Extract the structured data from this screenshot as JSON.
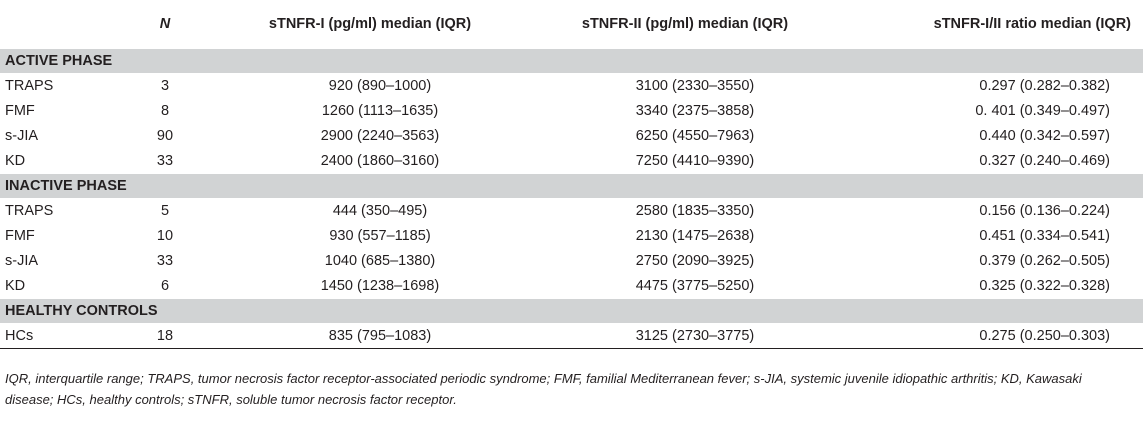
{
  "table": {
    "headers": [
      "",
      "N",
      "sTNFR-I (pg/ml) median (IQR)",
      "sTNFR-II (pg/ml) median (IQR)",
      "sTNFR-I/II ratio median (IQR)"
    ],
    "sections": [
      {
        "title": "ACTIVE PHASE",
        "rows": [
          [
            "TRAPS",
            "3",
            "920 (890–1000)",
            "3100 (2330–3550)",
            "0.297 (0.282–0.382)"
          ],
          [
            "FMF",
            "8",
            "1260 (1113–1635)",
            "3340 (2375–3858)",
            "0. 401 (0.349–0.497)"
          ],
          [
            "s-JIA",
            "90",
            "2900 (2240–3563)",
            "6250 (4550–7963)",
            "0.440 (0.342–0.597)"
          ],
          [
            "KD",
            "33",
            "2400 (1860–3160)",
            "7250 (4410–9390)",
            "0.327 (0.240–0.469)"
          ]
        ]
      },
      {
        "title": "INACTIVE PHASE",
        "rows": [
          [
            "TRAPS",
            "5",
            "444 (350–495)",
            "2580 (1835–3350)",
            "0.156 (0.136–0.224)"
          ],
          [
            "FMF",
            "10",
            "930 (557–1185)",
            "2130 (1475–2638)",
            "0.451 (0.334–0.541)"
          ],
          [
            "s-JIA",
            "33",
            "1040 (685–1380)",
            "2750 (2090–3925)",
            "0.379 (0.262–0.505)"
          ],
          [
            "KD",
            "6",
            "1450 (1238–1698)",
            "4475 (3775–5250)",
            "0.325 (0.322–0.328)"
          ]
        ]
      },
      {
        "title": "HEALTHY CONTROLS",
        "rows": [
          [
            "HCs",
            "18",
            "835 (795–1083)",
            "3125 (2730–3775)",
            "0.275 (0.250–0.303)"
          ]
        ]
      }
    ]
  },
  "footnote": {
    "line1": "IQR, interquartile range; TRAPS, tumor necrosis factor receptor-associated periodic syndrome; FMF, familial Mediterranean fever; s-JIA, systemic juvenile idiopathic arthritis; KD, Kawasaki",
    "line2": "disease; HCs, healthy controls; sTNFR, soluble tumor necrosis factor receptor."
  }
}
